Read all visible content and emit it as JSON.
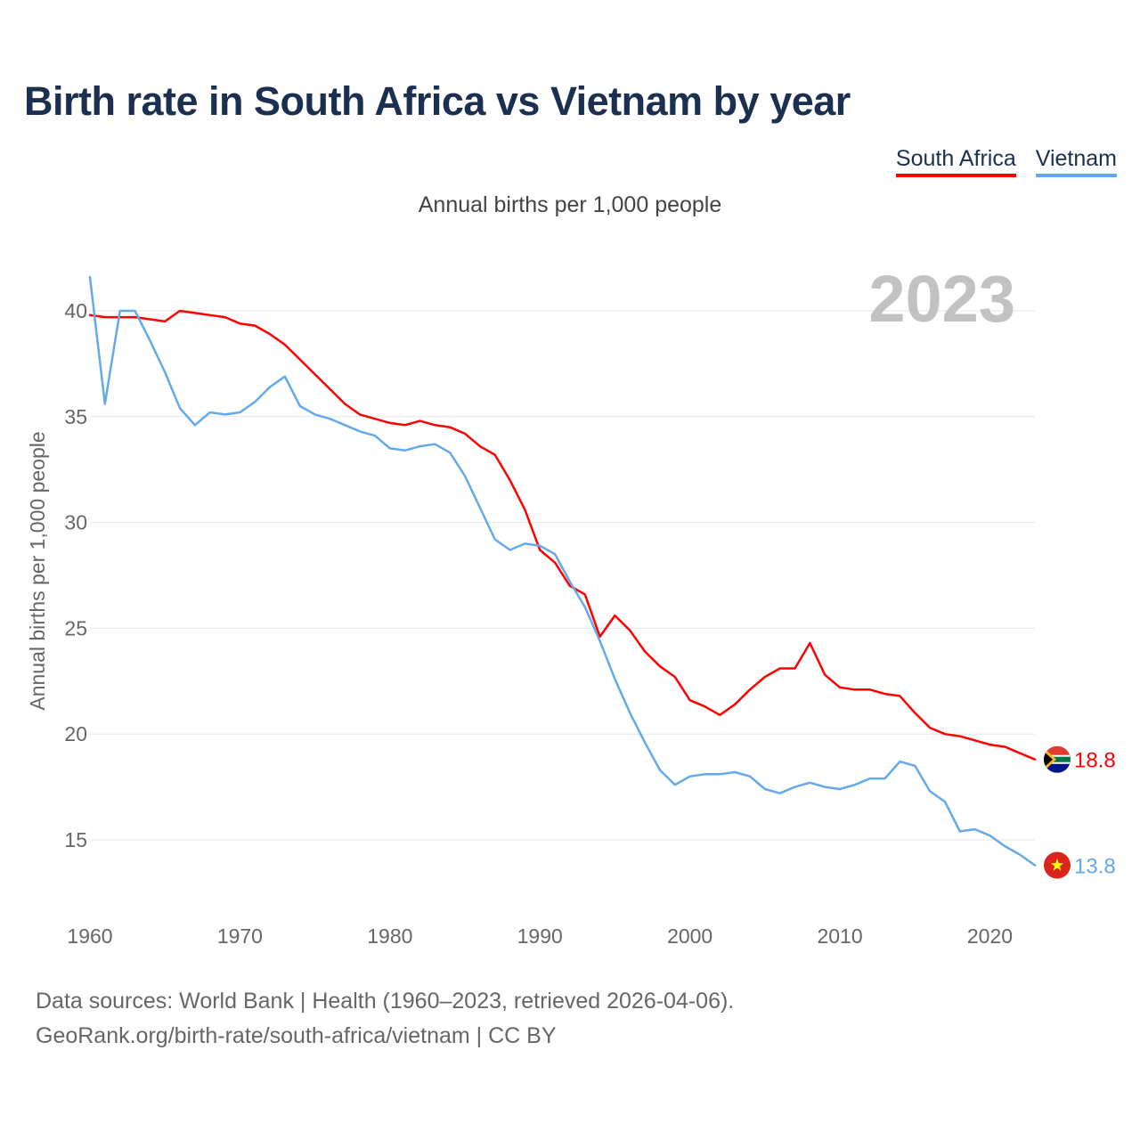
{
  "title": "Birth rate in South Africa vs Vietnam by year",
  "legend": [
    {
      "name": "South Africa",
      "color": "#ff0000"
    },
    {
      "name": "Vietnam",
      "color": "#64a9ea"
    }
  ],
  "footer": {
    "line1": "Data sources: World Bank | Health (1960–2023, retrieved 2026-04-06).",
    "line2": "GeoRank.org/birth-rate/south-africa/vietnam | CC BY"
  },
  "chart_data": {
    "type": "line",
    "title": "Birth rate in South Africa vs Vietnam by year",
    "subtitle": "Annual births per 1,000 people",
    "xlabel": "",
    "ylabel": "Annual births per 1,000 people",
    "year_label": "2023",
    "xlim": [
      1960,
      2023
    ],
    "ylim": [
      12,
      42
    ],
    "x_ticks": [
      1960,
      1970,
      1980,
      1990,
      2000,
      2010,
      2020
    ],
    "y_ticks": [
      15,
      20,
      25,
      30,
      35,
      40
    ],
    "grid": true,
    "x": [
      1960,
      1961,
      1962,
      1963,
      1964,
      1965,
      1966,
      1967,
      1968,
      1969,
      1970,
      1971,
      1972,
      1973,
      1974,
      1975,
      1976,
      1977,
      1978,
      1979,
      1980,
      1981,
      1982,
      1983,
      1984,
      1985,
      1986,
      1987,
      1988,
      1989,
      1990,
      1991,
      1992,
      1993,
      1994,
      1995,
      1996,
      1997,
      1998,
      1999,
      2000,
      2001,
      2002,
      2003,
      2004,
      2005,
      2006,
      2007,
      2008,
      2009,
      2010,
      2011,
      2012,
      2013,
      2014,
      2015,
      2016,
      2017,
      2018,
      2019,
      2020,
      2021,
      2022,
      2023
    ],
    "series": [
      {
        "name": "South Africa",
        "color": "#ff0000",
        "end_label": "18.8",
        "values": [
          39.8,
          39.7,
          39.7,
          39.7,
          39.6,
          39.5,
          40.0,
          39.9,
          39.8,
          39.7,
          39.4,
          39.3,
          38.9,
          38.4,
          37.7,
          37.0,
          36.3,
          35.6,
          35.1,
          34.9,
          34.7,
          34.6,
          34.8,
          34.6,
          34.5,
          34.2,
          33.6,
          33.2,
          32.0,
          30.6,
          28.7,
          28.1,
          27.0,
          26.6,
          24.6,
          25.6,
          24.9,
          23.9,
          23.2,
          22.7,
          21.6,
          21.3,
          20.9,
          21.4,
          22.1,
          22.7,
          23.1,
          23.1,
          24.3,
          22.8,
          22.2,
          22.1,
          22.1,
          21.9,
          21.8,
          21.0,
          20.3,
          20.0,
          19.9,
          19.7,
          19.5,
          19.4,
          19.1,
          18.8
        ]
      },
      {
        "name": "Vietnam",
        "color": "#64a9ea",
        "end_label": "13.8",
        "values": [
          41.6,
          35.6,
          40.0,
          40.0,
          38.6,
          37.1,
          35.4,
          34.6,
          35.2,
          35.1,
          35.2,
          35.7,
          36.4,
          36.9,
          35.5,
          35.1,
          34.9,
          34.6,
          34.3,
          34.1,
          33.5,
          33.4,
          33.6,
          33.7,
          33.3,
          32.2,
          30.7,
          29.2,
          28.7,
          29.0,
          28.9,
          28.5,
          27.2,
          26.0,
          24.4,
          22.6,
          21.0,
          19.6,
          18.3,
          17.6,
          18.0,
          18.1,
          18.1,
          18.2,
          18.0,
          17.4,
          17.2,
          17.5,
          17.7,
          17.5,
          17.4,
          17.6,
          17.9,
          17.9,
          18.7,
          18.5,
          17.3,
          16.8,
          15.4,
          15.5,
          15.2,
          14.7,
          14.3,
          13.8
        ]
      }
    ]
  }
}
